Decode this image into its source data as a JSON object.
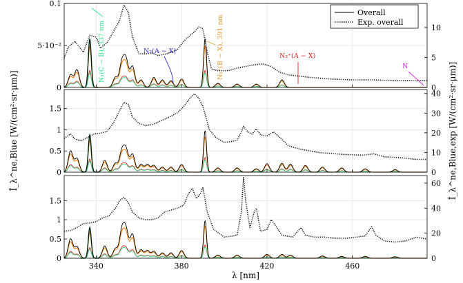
{
  "chart_data": {
    "type": "line",
    "xlabel": "λ [nm]",
    "ylabel_left": "Î_λ^ne,Blue [W/(cm²·sr·μm)]",
    "ylabel_right": "Î_λ^ne,Blue,exp [W/(cm²·sr·μm)]",
    "xlim": [
      325,
      495
    ],
    "xticks": [
      340,
      380,
      420,
      460
    ],
    "grid": true,
    "legend": {
      "placement": "top-right",
      "entries": [
        {
          "label": "Overall",
          "style": "solid"
        },
        {
          "label": "Exp. overall",
          "style": "dotted"
        }
      ]
    },
    "panels": [
      {
        "id": "top",
        "ylim_left": [
          0,
          0.1
        ],
        "yticks_left": [
          {
            "v": 0.1,
            "label": "0.1"
          },
          {
            "v": 0.05,
            "label": "5·10⁻²"
          },
          {
            "v": 0,
            "label": "0"
          }
        ],
        "ylim_right": [
          0,
          14
        ],
        "yticks_right": [
          {
            "v": 10,
            "label": "10"
          },
          {
            "v": 5,
            "label": "5"
          },
          {
            "v": 0,
            "label": "0"
          }
        ],
        "sim_peaks": [
          [
            328,
            0.015
          ],
          [
            331,
            0.021
          ],
          [
            337,
            0.058
          ],
          [
            349,
            0.012
          ],
          [
            352,
            0.028
          ],
          [
            354,
            0.031
          ],
          [
            357,
            0.025
          ],
          [
            361,
            0.009
          ],
          [
            367,
            0.012
          ],
          [
            371,
            0.009
          ],
          [
            375,
            0.008
          ],
          [
            380,
            0.01
          ],
          [
            391,
            0.058
          ],
          [
            397,
            0.005
          ],
          [
            406,
            0.004
          ],
          [
            415,
            0.004
          ],
          [
            427,
            0.009
          ]
        ],
        "exp": [
          [
            325,
            0.035
          ],
          [
            327,
            0.048
          ],
          [
            330,
            0.055
          ],
          [
            334,
            0.042
          ],
          [
            337,
            0.062
          ],
          [
            340,
            0.06
          ],
          [
            342,
            0.047
          ],
          [
            345,
            0.053
          ],
          [
            348,
            0.066
          ],
          [
            351,
            0.08
          ],
          [
            353,
            0.098
          ],
          [
            355,
            0.09
          ],
          [
            357,
            0.06
          ],
          [
            360,
            0.04
          ],
          [
            363,
            0.04
          ],
          [
            366,
            0.041
          ],
          [
            369,
            0.038
          ],
          [
            373,
            0.04
          ],
          [
            376,
            0.043
          ],
          [
            378,
            0.045
          ],
          [
            381,
            0.055
          ],
          [
            384,
            0.062
          ],
          [
            386,
            0.066
          ],
          [
            388,
            0.072
          ],
          [
            390,
            0.07
          ],
          [
            392,
            0.042
          ],
          [
            394,
            0.022
          ],
          [
            397,
            0.02
          ],
          [
            402,
            0.02
          ],
          [
            406,
            0.023
          ],
          [
            410,
            0.025
          ],
          [
            414,
            0.027
          ],
          [
            418,
            0.028
          ],
          [
            422,
            0.025
          ],
          [
            426,
            0.018
          ],
          [
            430,
            0.015
          ],
          [
            440,
            0.012
          ],
          [
            450,
            0.01
          ],
          [
            460,
            0.009
          ],
          [
            470,
            0.009
          ],
          [
            480,
            0.008
          ],
          [
            495,
            0.008
          ]
        ],
        "annotations": [
          {
            "text": "N₂(C − B), 337 nm",
            "color": "#2ee08a"
          },
          {
            "text": "N₂(A − X)",
            "color": "#2b2bd6"
          },
          {
            "text": "N₂⁺(B − X), 391 nm",
            "color": "#e69a2e"
          },
          {
            "text": "N₂⁺(A − X)",
            "color": "#e02020"
          },
          {
            "text": "N",
            "color": "#e020e0"
          }
        ]
      },
      {
        "id": "middle",
        "ylim_left": [
          0,
          1.95
        ],
        "yticks_left": [
          {
            "v": 1.5,
            "label": "1.5"
          },
          {
            "v": 1,
            "label": "1"
          },
          {
            "v": 0.5,
            "label": "0.5"
          },
          {
            "v": 0,
            "label": "0"
          }
        ],
        "ylim_right": [
          0,
          42
        ],
        "yticks_right": [
          {
            "v": 40,
            "label": "40"
          },
          {
            "v": 30,
            "label": "30"
          },
          {
            "v": 20,
            "label": "20"
          },
          {
            "v": 10,
            "label": "10"
          },
          {
            "v": 0,
            "label": "0"
          }
        ],
        "sim_peaks": [
          [
            328,
            0.5
          ],
          [
            331,
            0.32
          ],
          [
            337,
            0.88
          ],
          [
            344,
            0.28
          ],
          [
            349,
            0.21
          ],
          [
            352,
            0.47
          ],
          [
            354,
            0.5
          ],
          [
            357,
            0.42
          ],
          [
            361,
            0.18
          ],
          [
            364,
            0.18
          ],
          [
            367,
            0.16
          ],
          [
            371,
            0.12
          ],
          [
            375,
            0.12
          ],
          [
            380,
            0.18
          ],
          [
            391,
            0.98
          ],
          [
            397,
            0.1
          ],
          [
            406,
            0.1
          ],
          [
            415,
            0.08
          ],
          [
            420,
            0.2
          ],
          [
            427,
            0.21
          ],
          [
            431,
            0.19
          ],
          [
            438,
            0.16
          ],
          [
            446,
            0.12
          ],
          [
            455,
            0.1
          ],
          [
            466,
            0.08
          ],
          [
            480,
            0.06
          ]
        ],
        "exp": [
          [
            325,
            0.8
          ],
          [
            328,
            0.9
          ],
          [
            330,
            0.78
          ],
          [
            333,
            0.74
          ],
          [
            336,
            0.82
          ],
          [
            339,
            0.9
          ],
          [
            342,
            0.92
          ],
          [
            345,
            0.96
          ],
          [
            348,
            1.15
          ],
          [
            351,
            1.45
          ],
          [
            353,
            1.65
          ],
          [
            355,
            1.6
          ],
          [
            357,
            1.3
          ],
          [
            360,
            1.15
          ],
          [
            363,
            1.1
          ],
          [
            366,
            1.12
          ],
          [
            369,
            1.18
          ],
          [
            372,
            1.25
          ],
          [
            375,
            1.32
          ],
          [
            378,
            1.4
          ],
          [
            381,
            1.55
          ],
          [
            384,
            1.75
          ],
          [
            386,
            1.85
          ],
          [
            388,
            1.75
          ],
          [
            390,
            1.55
          ],
          [
            393,
            1.0
          ],
          [
            396,
            0.82
          ],
          [
            400,
            0.7
          ],
          [
            403,
            0.72
          ],
          [
            406,
            0.75
          ],
          [
            408,
            0.95
          ],
          [
            409,
            1.08
          ],
          [
            411,
            0.95
          ],
          [
            413,
            0.9
          ],
          [
            415,
            1.02
          ],
          [
            417,
            0.88
          ],
          [
            420,
            0.85
          ],
          [
            423,
            0.95
          ],
          [
            426,
            0.82
          ],
          [
            430,
            0.62
          ],
          [
            435,
            0.55
          ],
          [
            440,
            0.5
          ],
          [
            445,
            0.46
          ],
          [
            450,
            0.44
          ],
          [
            455,
            0.42
          ],
          [
            460,
            0.41
          ],
          [
            465,
            0.4
          ],
          [
            470,
            0.43
          ],
          [
            475,
            0.36
          ],
          [
            480,
            0.35
          ],
          [
            485,
            0.33
          ],
          [
            490,
            0.3
          ],
          [
            495,
            0.3
          ]
        ]
      },
      {
        "id": "bottom",
        "ylim_left": [
          0,
          2.15
        ],
        "yticks_left": [
          {
            "v": 1.5,
            "label": "1.5"
          },
          {
            "v": 1,
            "label": "1"
          },
          {
            "v": 0.5,
            "label": "0.5"
          },
          {
            "v": 0,
            "label": "0"
          }
        ],
        "ylim_right": [
          0,
          66
        ],
        "yticks_right": [
          {
            "v": 60,
            "label": "60"
          },
          {
            "v": 40,
            "label": "40"
          },
          {
            "v": 20,
            "label": "20"
          },
          {
            "v": 0,
            "label": "0"
          }
        ],
        "sim_peaks": [
          [
            328,
            0.5
          ],
          [
            331,
            0.3
          ],
          [
            337,
            0.8
          ],
          [
            344,
            0.32
          ],
          [
            349,
            0.25
          ],
          [
            352,
            0.7
          ],
          [
            354,
            0.7
          ],
          [
            357,
            0.62
          ],
          [
            361,
            0.22
          ],
          [
            364,
            0.2
          ],
          [
            367,
            0.18
          ],
          [
            371,
            0.14
          ],
          [
            375,
            0.14
          ],
          [
            380,
            0.2
          ],
          [
            391,
            0.98
          ],
          [
            397,
            0.08
          ],
          [
            406,
            0.08
          ],
          [
            420,
            0.1
          ],
          [
            427,
            0.1
          ],
          [
            431,
            0.08
          ],
          [
            446,
            0.06
          ],
          [
            455,
            0.05
          ],
          [
            466,
            0.05
          ],
          [
            480,
            0.04
          ]
        ],
        "exp": [
          [
            325,
            0.7
          ],
          [
            328,
            0.72
          ],
          [
            331,
            0.8
          ],
          [
            334,
            0.9
          ],
          [
            337,
            0.92
          ],
          [
            340,
            0.95
          ],
          [
            343,
            1.05
          ],
          [
            346,
            1.1
          ],
          [
            349,
            1.3
          ],
          [
            351,
            1.5
          ],
          [
            353,
            1.58
          ],
          [
            355,
            1.45
          ],
          [
            357,
            1.2
          ],
          [
            360,
            1.05
          ],
          [
            363,
            1.0
          ],
          [
            366,
            1.0
          ],
          [
            369,
            1.05
          ],
          [
            372,
            1.2
          ],
          [
            375,
            1.25
          ],
          [
            378,
            1.3
          ],
          [
            381,
            1.38
          ],
          [
            383,
            1.65
          ],
          [
            385,
            1.82
          ],
          [
            387,
            1.55
          ],
          [
            389,
            1.7
          ],
          [
            390,
            1.85
          ],
          [
            392,
            1.2
          ],
          [
            395,
            0.75
          ],
          [
            400,
            0.55
          ],
          [
            404,
            0.58
          ],
          [
            406,
            0.6
          ],
          [
            408,
            1.2
          ],
          [
            409,
            2.1
          ],
          [
            410,
            1.5
          ],
          [
            412,
            0.8
          ],
          [
            414,
            1.2
          ],
          [
            415,
            1.3
          ],
          [
            417,
            0.7
          ],
          [
            420,
            0.75
          ],
          [
            422,
            1.0
          ],
          [
            424,
            0.85
          ],
          [
            427,
            0.6
          ],
          [
            432,
            0.55
          ],
          [
            436,
            0.8
          ],
          [
            438,
            0.6
          ],
          [
            442,
            0.55
          ],
          [
            447,
            0.55
          ],
          [
            452,
            0.52
          ],
          [
            457,
            0.52
          ],
          [
            462,
            0.55
          ],
          [
            466,
            0.58
          ],
          [
            469,
            0.82
          ],
          [
            471,
            0.6
          ],
          [
            475,
            0.45
          ],
          [
            480,
            0.42
          ],
          [
            485,
            0.45
          ],
          [
            490,
            0.55
          ],
          [
            495,
            0.5
          ]
        ]
      }
    ]
  }
}
